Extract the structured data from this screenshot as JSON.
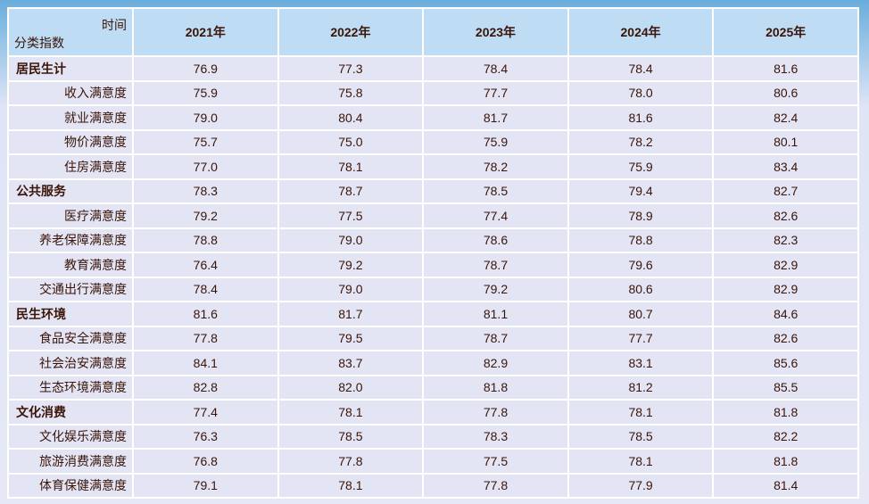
{
  "header": {
    "time_label": "时间",
    "category_label": "分类指数",
    "years": [
      "2021年",
      "2022年",
      "2023年",
      "2024年",
      "2025年"
    ]
  },
  "rows": [
    {
      "name": "居民生计",
      "type": "category",
      "values": [
        "76.9",
        "77.3",
        "78.4",
        "78.4",
        "81.6"
      ]
    },
    {
      "name": "收入满意度",
      "type": "item",
      "values": [
        "75.9",
        "75.8",
        "77.7",
        "78.0",
        "80.6"
      ]
    },
    {
      "name": "就业满意度",
      "type": "item",
      "values": [
        "79.0",
        "80.4",
        "81.7",
        "81.6",
        "82.4"
      ]
    },
    {
      "name": "物价满意度",
      "type": "item",
      "values": [
        "75.7",
        "75.0",
        "75.9",
        "78.2",
        "80.1"
      ]
    },
    {
      "name": "住房满意度",
      "type": "item",
      "values": [
        "77.0",
        "78.1",
        "78.2",
        "75.9",
        "83.4"
      ]
    },
    {
      "name": "公共服务",
      "type": "category",
      "values": [
        "78.3",
        "78.7",
        "78.5",
        "79.4",
        "82.7"
      ]
    },
    {
      "name": "医疗满意度",
      "type": "item",
      "values": [
        "79.2",
        "77.5",
        "77.4",
        "78.9",
        "82.6"
      ]
    },
    {
      "name": "养老保障满意度",
      "type": "item",
      "values": [
        "78.8",
        "79.0",
        "78.6",
        "78.8",
        "82.3"
      ]
    },
    {
      "name": "教育满意度",
      "type": "item",
      "values": [
        "76.4",
        "79.2",
        "78.7",
        "79.6",
        "82.9"
      ]
    },
    {
      "name": "交通出行满意度",
      "type": "item",
      "values": [
        "78.4",
        "79.0",
        "79.2",
        "80.6",
        "82.9"
      ]
    },
    {
      "name": "民生环境",
      "type": "category",
      "values": [
        "81.6",
        "81.7",
        "81.1",
        "80.7",
        "84.6"
      ]
    },
    {
      "name": "食品安全满意度",
      "type": "item",
      "values": [
        "77.8",
        "79.5",
        "78.7",
        "77.7",
        "82.6"
      ]
    },
    {
      "name": "社会治安满意度",
      "type": "item",
      "values": [
        "84.1",
        "83.7",
        "82.9",
        "83.1",
        "85.6"
      ]
    },
    {
      "name": "生态环境满意度",
      "type": "item",
      "values": [
        "82.8",
        "82.0",
        "81.8",
        "81.2",
        "85.5"
      ]
    },
    {
      "name": "文化消费",
      "type": "category",
      "values": [
        "77.4",
        "78.1",
        "77.8",
        "78.1",
        "81.8"
      ]
    },
    {
      "name": "文化娱乐满意度",
      "type": "item",
      "values": [
        "76.3",
        "78.5",
        "78.3",
        "78.5",
        "82.2"
      ]
    },
    {
      "name": "旅游消费满意度",
      "type": "item",
      "values": [
        "76.8",
        "77.8",
        "77.5",
        "78.1",
        "81.8"
      ]
    },
    {
      "name": "体育保健满意度",
      "type": "item",
      "values": [
        "79.1",
        "78.1",
        "77.8",
        "77.9",
        "81.4"
      ]
    }
  ]
}
